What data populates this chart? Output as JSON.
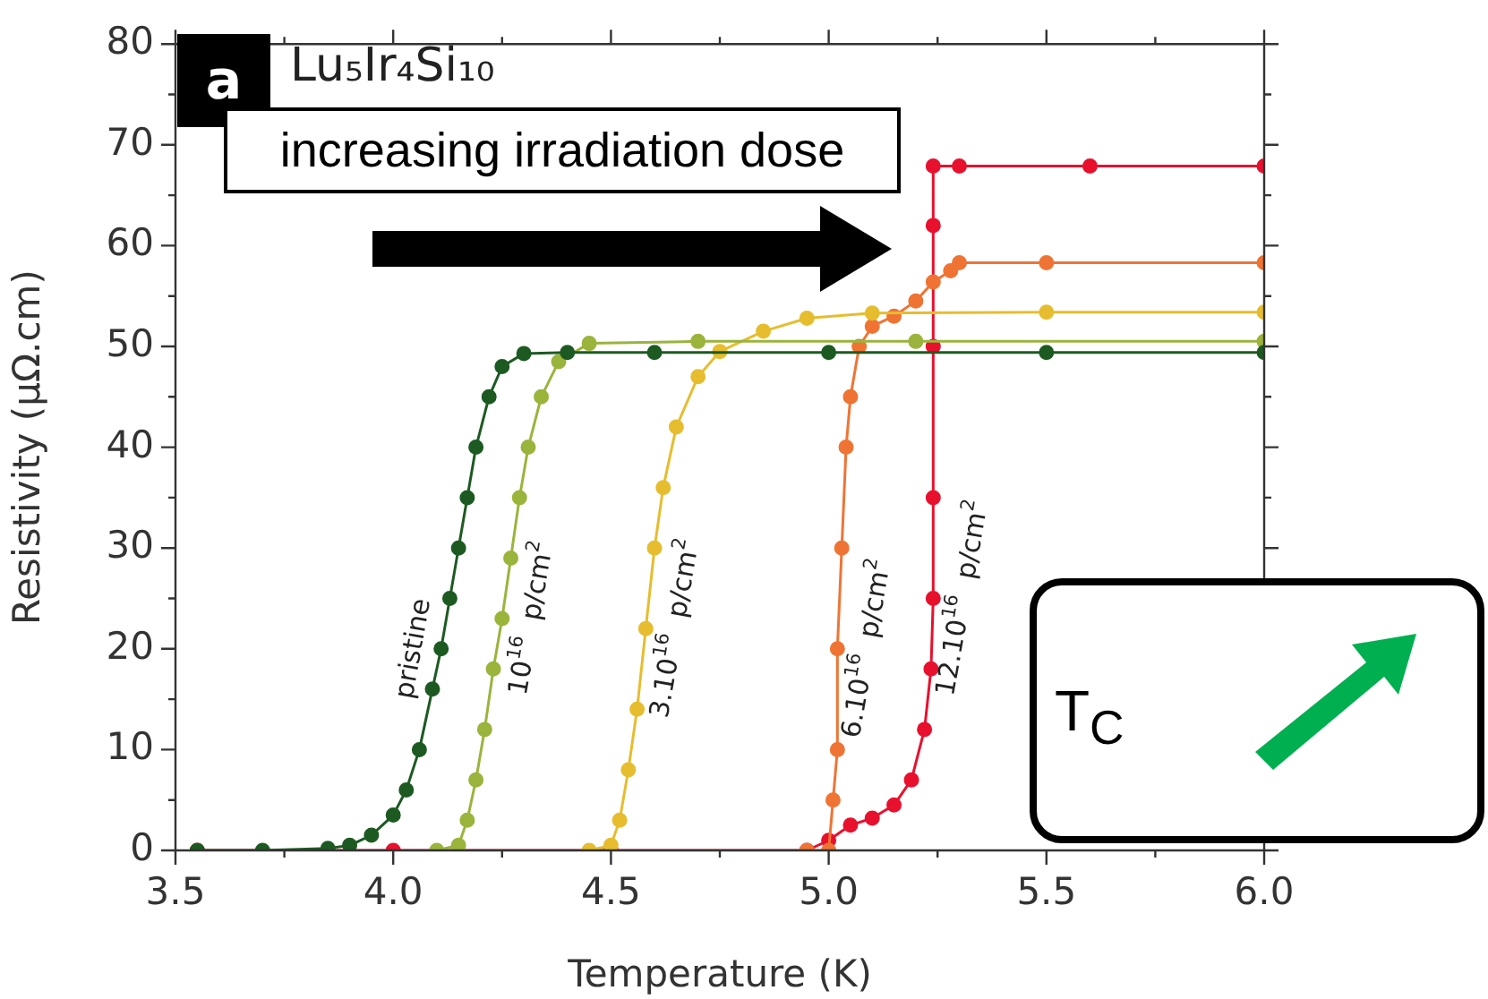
{
  "chart_data": {
    "type": "line",
    "xlabel": "Temperature (K)",
    "ylabel": "Resistivity (µΩ.cm)",
    "xlim": [
      3.5,
      6.0
    ],
    "ylim": [
      0,
      80
    ],
    "xticks": [
      {
        "value": 3.5,
        "label": "3.5"
      },
      {
        "value": 3.75,
        "label": null
      },
      {
        "value": 4,
        "label": "4.0"
      },
      {
        "value": 4.25,
        "label": null
      },
      {
        "value": 4.5,
        "label": "4.5"
      },
      {
        "value": 4.75,
        "label": null
      },
      {
        "value": 5,
        "label": "5.0"
      },
      {
        "value": 5.25,
        "label": null
      },
      {
        "value": 5.5,
        "label": "5.5"
      },
      {
        "value": 5.75,
        "label": null
      },
      {
        "value": 6,
        "label": "6.0"
      }
    ],
    "yticks": [
      0,
      {
        "value": 5,
        "label": null
      },
      10,
      {
        "value": 15,
        "label": null
      },
      20,
      {
        "value": 25,
        "label": null
      },
      30,
      {
        "value": 35,
        "label": null
      },
      40,
      {
        "value": 45,
        "label": null
      },
      50,
      {
        "value": 55,
        "label": null
      },
      60,
      {
        "value": 65,
        "label": null
      },
      70,
      {
        "value": 75,
        "label": null
      },
      80
    ],
    "grid": false,
    "legend": false,
    "marker": "circle",
    "line_style": "solid",
    "annotations": [
      "a",
      "Lu₅Ir₄Si₁₀",
      "increasing irradiation dose",
      "T$_{C}$"
    ],
    "series": [
      {
        "name": "pristine",
        "color": "#1d5a22",
        "x": [
          3.55,
          3.7,
          3.85,
          3.9,
          3.95,
          4.0,
          4.03,
          4.06,
          4.09,
          4.11,
          4.13,
          4.15,
          4.17,
          4.19,
          4.22,
          4.25,
          4.3,
          4.4,
          4.6,
          5.0,
          5.5,
          6.0
        ],
        "values": [
          0,
          0,
          0.2,
          0.5,
          1.5,
          3.5,
          6,
          10,
          16,
          20,
          25,
          30,
          35,
          40,
          45,
          48,
          49.3,
          49.4,
          49.4,
          49.4,
          49.4,
          49.4
        ]
      },
      {
        "name": "10$^{16}$ p/cm$^{2}$",
        "color": "#9ab43c",
        "x": [
          4.1,
          4.15,
          4.17,
          4.19,
          4.21,
          4.23,
          4.25,
          4.27,
          4.29,
          4.31,
          4.34,
          4.38,
          4.45,
          4.7,
          5.2,
          6.0
        ],
        "values": [
          0,
          0.5,
          3,
          7,
          12,
          18,
          23,
          29,
          35,
          40,
          45,
          48.5,
          50.3,
          50.5,
          50.5,
          50.5
        ]
      },
      {
        "name": "3.10$^{16}$ p/cm$^{2}$",
        "color": "#e6bd2e",
        "x": [
          4.45,
          4.5,
          4.52,
          4.54,
          4.56,
          4.58,
          4.6,
          4.62,
          4.65,
          4.7,
          4.75,
          4.85,
          4.95,
          5.1,
          5.5,
          6.0
        ],
        "values": [
          0,
          0.5,
          3,
          8,
          14,
          22,
          30,
          36,
          42,
          47,
          49.5,
          51.5,
          52.8,
          53.3,
          53.4,
          53.4
        ]
      },
      {
        "name": "6.10$^{16}$ p/cm$^{2}$",
        "color": "#ef7434",
        "x": [
          4.95,
          5.0,
          5.01,
          5.02,
          5.02,
          5.03,
          5.04,
          5.05,
          5.07,
          5.1,
          5.15,
          5.2,
          5.24,
          5.28,
          5.3,
          5.5,
          6.0
        ],
        "values": [
          0,
          0,
          5,
          10,
          20,
          30,
          40,
          45,
          50,
          52,
          53,
          54.5,
          56.4,
          57.5,
          58.3,
          58.3,
          58.3
        ]
      },
      {
        "name": "12.10$^{16}$ p/cm$^{2}$",
        "color": "#e8112d",
        "x": [
          3.55,
          4.0,
          4.5,
          4.95,
          5.0,
          5.05,
          5.1,
          5.15,
          5.19,
          5.22,
          5.235,
          5.24,
          5.24,
          5.24,
          5.24,
          5.24,
          5.3,
          5.6,
          6.0
        ],
        "values": [
          0,
          0,
          0,
          0,
          1,
          2.5,
          3.2,
          4.5,
          7,
          12,
          18,
          25,
          35,
          50,
          62,
          67.9,
          67.9,
          67.9,
          67.9
        ]
      }
    ]
  }
}
